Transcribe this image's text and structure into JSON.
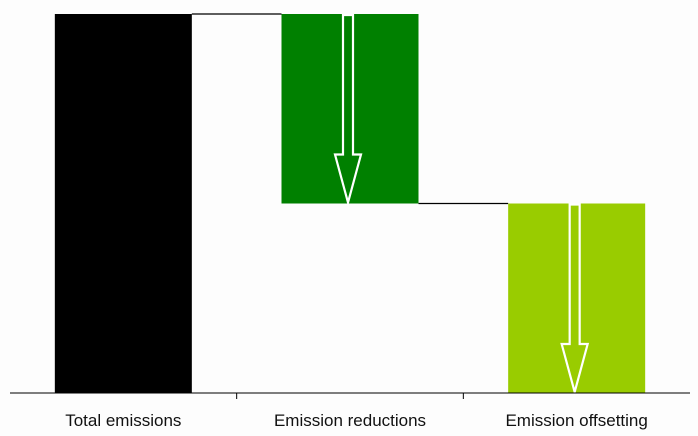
{
  "chart_data": {
    "type": "bar",
    "subtype": "waterfall",
    "title": "",
    "xlabel": "",
    "ylabel": "",
    "grid": false,
    "legend": "none",
    "y_axis_visible": false,
    "ylim": [
      0,
      100
    ],
    "categories": [
      "Total emissions",
      "Emission reductions",
      "Emission offsetting"
    ],
    "bars": [
      {
        "category": "Total emissions",
        "start": 0,
        "end": 100,
        "color": "#000000",
        "arrow": false
      },
      {
        "category": "Emission reductions",
        "start": 100,
        "end": 50,
        "color": "#008000",
        "arrow": true
      },
      {
        "category": "Emission offsetting",
        "start": 50,
        "end": 0,
        "color": "#99cc00",
        "arrow": true
      }
    ],
    "connectors": true
  }
}
